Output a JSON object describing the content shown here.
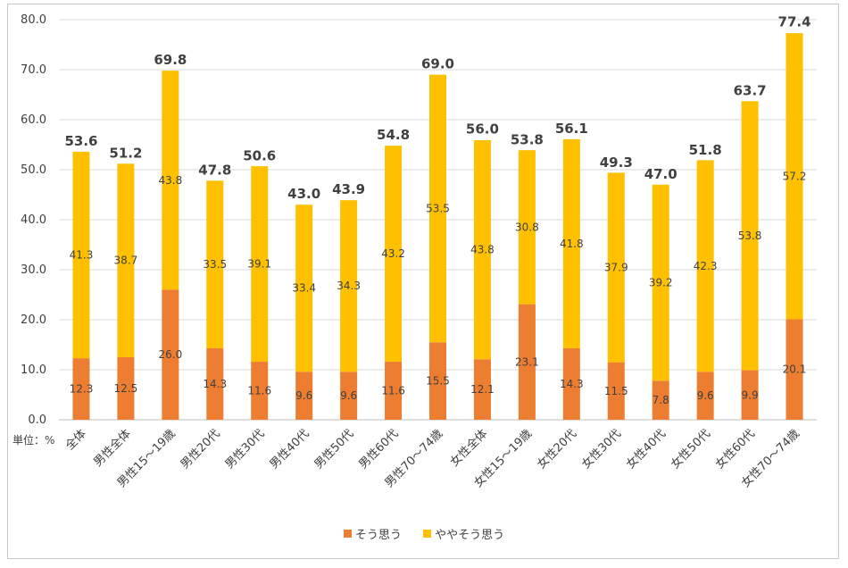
{
  "chart_data": {
    "type": "bar",
    "stacked": true,
    "unit_label": "単位：%",
    "categories": [
      "全体",
      "男性全体",
      "男性15～19歳",
      "男性20代",
      "男性30代",
      "男性40代",
      "男性50代",
      "男性60代",
      "男性70～74歳",
      "女性全体",
      "女性15～19歳",
      "女性20代",
      "女性30代",
      "女性40代",
      "女性50代",
      "女性60代",
      "女性70～74歳"
    ],
    "series": [
      {
        "name": "そう思う",
        "color": "#ED7D31",
        "values": [
          12.3,
          12.5,
          26.0,
          14.3,
          11.6,
          9.6,
          9.6,
          11.6,
          15.5,
          12.1,
          23.1,
          14.3,
          11.5,
          7.8,
          9.6,
          9.9,
          20.1
        ],
        "labels": [
          "12.3",
          "12.5",
          "26.0",
          "14.3",
          "11.6",
          "9.6",
          "9.6",
          "11.6",
          "15.5",
          "12.1",
          "23.1",
          "14.3",
          "11.5",
          "7.8",
          "9.6",
          "9.9",
          "20.1"
        ]
      },
      {
        "name": "ややそう思う",
        "color": "#FFC000",
        "values": [
          41.3,
          38.7,
          43.8,
          33.5,
          39.1,
          33.4,
          34.3,
          43.2,
          53.5,
          43.8,
          30.8,
          41.8,
          37.9,
          39.2,
          42.3,
          53.8,
          57.2
        ],
        "labels": [
          "41.3",
          "38.7",
          "43.8",
          "33.5",
          "39.1",
          "33.4",
          "34.3",
          "43.2",
          "53.5",
          "43.8",
          "30.8",
          "41.8",
          "37.9",
          "39.2",
          "42.3",
          "53.8",
          "57.2"
        ]
      }
    ],
    "totals": [
      53.6,
      51.2,
      69.8,
      47.8,
      50.6,
      43.0,
      43.9,
      54.8,
      69.0,
      56.0,
      53.8,
      56.1,
      49.3,
      47.0,
      51.8,
      63.7,
      77.4
    ],
    "total_labels": [
      "53.6",
      "51.2",
      "69.8",
      "47.8",
      "50.6",
      "43.0",
      "43.9",
      "54.8",
      "69.0",
      "56.0",
      "53.8",
      "56.1",
      "49.3",
      "47.0",
      "51.8",
      "63.7",
      "77.4"
    ],
    "y_ticks": [
      "0.0",
      "10.0",
      "20.0",
      "30.0",
      "40.0",
      "50.0",
      "60.0",
      "70.0",
      "80.0"
    ],
    "ylim": [
      0,
      80
    ],
    "grid": true,
    "legend_position": "bottom"
  }
}
